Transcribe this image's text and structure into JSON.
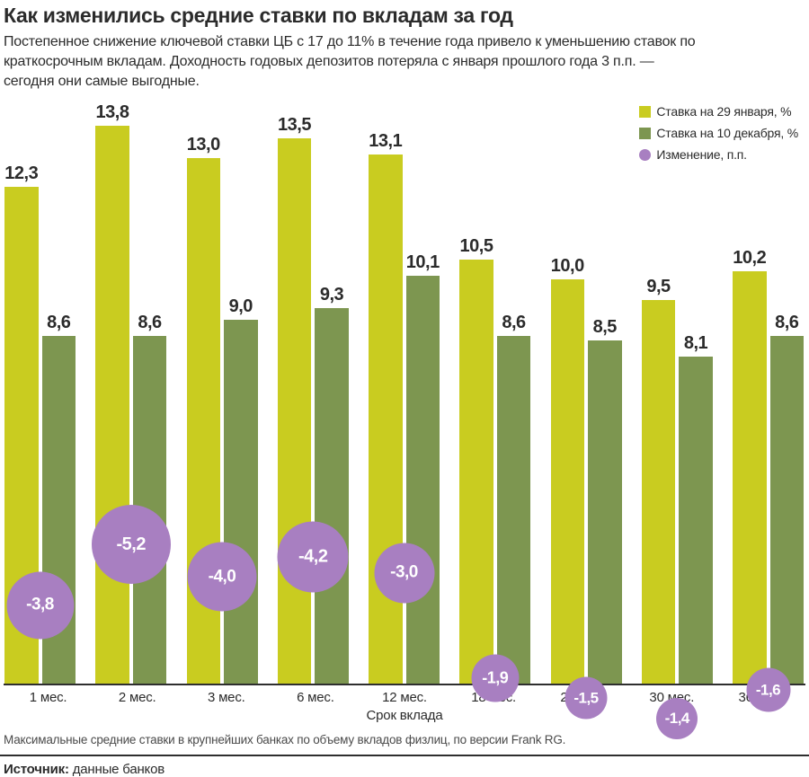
{
  "header": {
    "title": "Как изменились средние ставки по вкладам за год",
    "subtitle_lines": [
      "Постепенное снижение ключевой ставки ЦБ с 17 до 11% в течение года привело к уменьшению ставок по",
      "краткосрочным вкладам. Доходность годовых депозитов потеряла с января прошлого года 3 п.п. —",
      "сегодня они самые выгодные."
    ]
  },
  "legend": {
    "items": [
      {
        "label": "Ставка на 29 января, %",
        "color": "#c9cc20",
        "shape": "square"
      },
      {
        "label": "Ставка на 10 декабря, %",
        "color": "#7d9650",
        "shape": "square"
      },
      {
        "label": "Изменение, п.п.",
        "color": "#a87fc1",
        "shape": "circle"
      }
    ]
  },
  "chart_data": {
    "type": "bar",
    "categories": [
      "1 мес.",
      "2 мес.",
      "3 мес.",
      "6 мес.",
      "12 мес.",
      "18 мес.",
      "24 мес.",
      "30 мес.",
      "36 мес."
    ],
    "series": [
      {
        "name": "Ставка на 29 января, %",
        "color": "#c9cc20",
        "values": [
          12.3,
          13.8,
          13.0,
          13.5,
          13.1,
          10.5,
          10.0,
          9.5,
          10.2
        ],
        "labels": [
          "12,3",
          "13,8",
          "13,0",
          "13,5",
          "13,1",
          "10,5",
          "10,0",
          "9,5",
          "10,2"
        ]
      },
      {
        "name": "Ставка на 10 декабря, %",
        "color": "#7d9650",
        "values": [
          8.6,
          8.6,
          9.0,
          9.3,
          10.1,
          8.6,
          8.5,
          8.1,
          8.6
        ],
        "labels": [
          "8,6",
          "8,6",
          "9,0",
          "9,3",
          "10,1",
          "8,6",
          "8,5",
          "8,1",
          "8,6"
        ]
      }
    ],
    "change_series": {
      "name": "Изменение, п.п.",
      "color": "#a87fc1",
      "values": [
        -3.8,
        -5.2,
        -4.0,
        -4.2,
        -3.0,
        -1.9,
        -1.5,
        -1.4,
        -1.6
      ],
      "labels": [
        "-3,8",
        "-5,2",
        "-4,0",
        "-4,2",
        "-3,0",
        "-1,9",
        "-1,5",
        "-1,4",
        "-1,6"
      ]
    },
    "xlabel": "Срок вклада",
    "ylabel": "",
    "ylim": [
      0,
      14.5
    ],
    "grid": false,
    "value_labels_shown": true,
    "legend_position": "top-right",
    "bubble_size_note": "bubble diameter scales with sqrt of absolute change"
  },
  "footer": {
    "note": "Максимальные средние ставки в крупнейших банках по объему вкладов физлиц, по версии Frank RG.",
    "source_label": "Источник:",
    "source_text": "данные банков"
  }
}
